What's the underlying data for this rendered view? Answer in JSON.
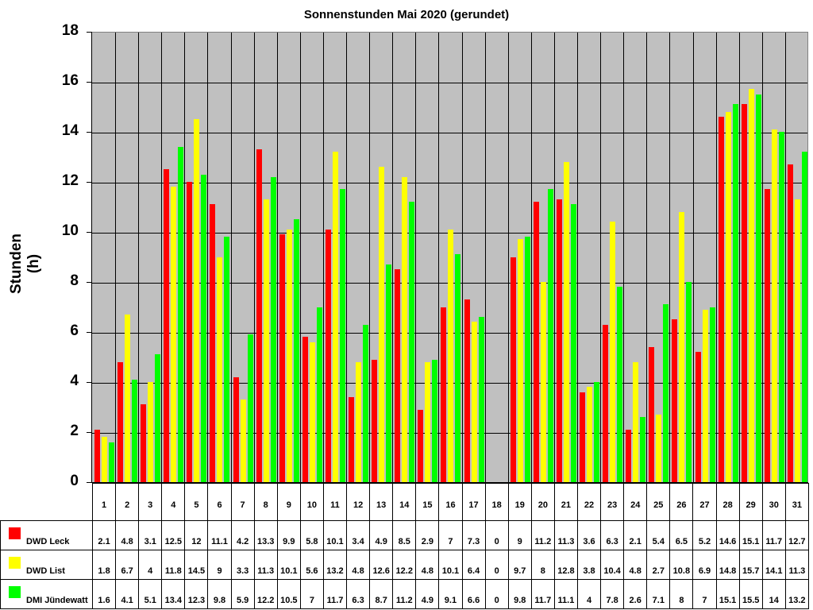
{
  "chart_data": {
    "type": "bar",
    "title": "Sonnenstunden Mai 2020 (gerundet)",
    "xlabel": "",
    "ylabel": "Stunden (h)",
    "ylim": [
      0,
      18
    ],
    "yticks": [
      0,
      2,
      4,
      6,
      8,
      10,
      12,
      14,
      16,
      18
    ],
    "grid": true,
    "legend_position": "data-table-left",
    "categories": [
      "1",
      "2",
      "3",
      "4",
      "5",
      "6",
      "7",
      "8",
      "9",
      "10",
      "11",
      "12",
      "13",
      "14",
      "15",
      "16",
      "17",
      "18",
      "19",
      "20",
      "21",
      "22",
      "23",
      "24",
      "25",
      "26",
      "27",
      "28",
      "29",
      "30",
      "31"
    ],
    "series": [
      {
        "name": "DWD Leck",
        "color": "#ff0000",
        "values": [
          2.1,
          4.8,
          3.1,
          12.5,
          12,
          11.1,
          4.2,
          13.3,
          9.9,
          5.8,
          10.1,
          3.4,
          4.9,
          8.5,
          2.9,
          7,
          7.3,
          0,
          9,
          11.2,
          11.3,
          3.6,
          6.3,
          2.1,
          5.4,
          6.5,
          5.2,
          14.6,
          15.1,
          11.7,
          12.7
        ]
      },
      {
        "name": "DWD List",
        "color": "#ffff00",
        "values": [
          1.8,
          6.7,
          4,
          11.8,
          14.5,
          9,
          3.3,
          11.3,
          10.1,
          5.6,
          13.2,
          4.8,
          12.6,
          12.2,
          4.8,
          10.1,
          6.4,
          0,
          9.7,
          8,
          12.8,
          3.8,
          10.4,
          4.8,
          2.7,
          10.8,
          6.9,
          14.8,
          15.7,
          14.1,
          11.3
        ]
      },
      {
        "name": "DMI Jündewatt",
        "color": "#00ff00",
        "values": [
          1.6,
          4.1,
          5.1,
          13.4,
          12.3,
          9.8,
          5.9,
          12.2,
          10.5,
          7,
          11.7,
          6.3,
          8.7,
          11.2,
          4.9,
          9.1,
          6.6,
          0,
          9.8,
          11.7,
          11.1,
          4,
          7.8,
          2.6,
          7.1,
          8,
          7,
          15.1,
          15.5,
          14,
          13.2
        ]
      }
    ]
  },
  "colors": {
    "plot_background": "#c0c0c0",
    "grid": "#000000"
  }
}
